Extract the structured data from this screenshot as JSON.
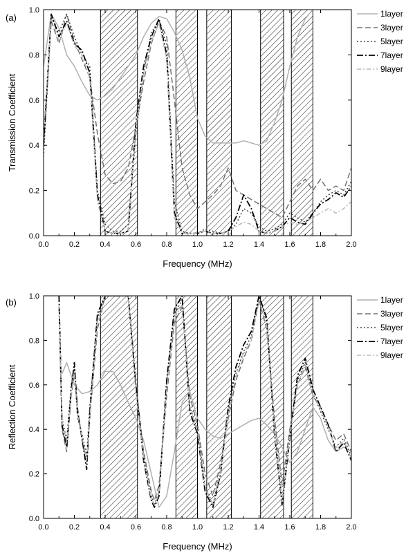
{
  "chart_data": [
    {
      "type": "line",
      "panel_label": "(a)",
      "xlabel": "Frequency (MHz)",
      "ylabel": "Transmission Coefficient",
      "xlim": [
        0.0,
        2.0
      ],
      "ylim": [
        0.0,
        1.0
      ],
      "xticks": [
        "0.0",
        "0.2",
        "0.4",
        "0.6",
        "0.8",
        "1.0",
        "1.2",
        "1.4",
        "1.6",
        "1.8",
        "2.0"
      ],
      "yticks": [
        "0.0",
        "0.2",
        "0.4",
        "0.6",
        "0.8",
        "1.0"
      ],
      "legend_position": "right",
      "band_gaps_mhz": [
        [
          0.37,
          0.61
        ],
        [
          0.86,
          1.0
        ],
        [
          1.06,
          1.22
        ],
        [
          1.41,
          1.56
        ],
        [
          1.61,
          1.75
        ]
      ],
      "series": [
        {
          "name": "1layer",
          "color": "#b0b0b0",
          "dash": "solid",
          "x": [
            0.0,
            0.05,
            0.1,
            0.15,
            0.2,
            0.25,
            0.3,
            0.35,
            0.4,
            0.45,
            0.5,
            0.55,
            0.6,
            0.65,
            0.7,
            0.75,
            0.8,
            0.85,
            0.9,
            0.95,
            1.0,
            1.05,
            1.1,
            1.15,
            1.2,
            1.25,
            1.3,
            1.35,
            1.4,
            1.45,
            1.5,
            1.55,
            1.6,
            1.65,
            1.7,
            1.75
          ],
          "y": [
            0.75,
            0.98,
            0.92,
            0.8,
            0.75,
            0.68,
            0.62,
            0.6,
            0.62,
            0.65,
            0.7,
            0.75,
            0.8,
            0.88,
            0.94,
            0.97,
            0.96,
            0.9,
            0.82,
            0.7,
            0.52,
            0.44,
            0.41,
            0.41,
            0.41,
            0.41,
            0.42,
            0.41,
            0.4,
            0.42,
            0.5,
            0.6,
            0.75,
            0.88,
            0.96,
            1.0
          ]
        },
        {
          "name": "3layer",
          "color": "#707070",
          "dash": "8,4",
          "x": [
            0.0,
            0.05,
            0.1,
            0.15,
            0.2,
            0.25,
            0.3,
            0.35,
            0.4,
            0.45,
            0.5,
            0.55,
            0.6,
            0.65,
            0.7,
            0.75,
            0.8,
            0.85,
            0.9,
            0.95,
            1.0,
            1.05,
            1.1,
            1.15,
            1.2,
            1.25,
            1.3,
            1.35,
            1.4,
            1.45,
            1.5,
            1.55,
            1.6,
            1.65,
            1.7,
            1.75,
            1.8,
            1.85,
            1.9,
            1.95,
            2.0
          ],
          "y": [
            0.4,
            0.95,
            0.85,
            0.98,
            0.86,
            0.78,
            0.7,
            0.45,
            0.27,
            0.23,
            0.24,
            0.3,
            0.48,
            0.68,
            0.85,
            0.95,
            0.88,
            0.6,
            0.3,
            0.18,
            0.12,
            0.15,
            0.18,
            0.22,
            0.3,
            0.2,
            0.18,
            0.16,
            0.14,
            0.12,
            0.1,
            0.08,
            0.15,
            0.22,
            0.25,
            0.2,
            0.25,
            0.2,
            0.22,
            0.2,
            0.3
          ]
        },
        {
          "name": "5layer",
          "color": "#404040",
          "dash": "2,3",
          "x": [
            0.0,
            0.05,
            0.1,
            0.15,
            0.2,
            0.25,
            0.3,
            0.35,
            0.4,
            0.45,
            0.5,
            0.55,
            0.6,
            0.65,
            0.7,
            0.75,
            0.8,
            0.85,
            0.9,
            0.95,
            1.0,
            1.05,
            1.1,
            1.15,
            1.2,
            1.25,
            1.3,
            1.35,
            1.4,
            1.45,
            1.5,
            1.55,
            1.6,
            1.65,
            1.7,
            1.75,
            1.8,
            1.85,
            1.9,
            1.95,
            2.0
          ],
          "y": [
            0.35,
            0.97,
            0.9,
            0.98,
            0.88,
            0.8,
            0.75,
            0.2,
            0.05,
            0.02,
            0.02,
            0.05,
            0.45,
            0.72,
            0.9,
            0.95,
            0.85,
            0.15,
            0.02,
            0.01,
            0.01,
            0.03,
            0.02,
            0.01,
            0.02,
            0.05,
            0.12,
            0.1,
            0.04,
            0.02,
            0.03,
            0.05,
            0.1,
            0.08,
            0.06,
            0.1,
            0.15,
            0.18,
            0.2,
            0.18,
            0.24
          ]
        },
        {
          "name": "7layer",
          "color": "#000000",
          "dash": "9,3,2,3",
          "x": [
            0.0,
            0.05,
            0.1,
            0.15,
            0.2,
            0.25,
            0.3,
            0.35,
            0.4,
            0.45,
            0.5,
            0.55,
            0.6,
            0.65,
            0.7,
            0.75,
            0.8,
            0.85,
            0.9,
            0.95,
            1.0,
            1.05,
            1.1,
            1.15,
            1.2,
            1.25,
            1.3,
            1.35,
            1.4,
            1.45,
            1.5,
            1.55,
            1.6,
            1.65,
            1.7,
            1.75,
            1.8,
            1.85,
            1.9,
            1.95,
            2.0
          ],
          "y": [
            0.4,
            0.98,
            0.88,
            0.95,
            0.85,
            0.82,
            0.72,
            0.18,
            0.02,
            0.01,
            0.01,
            0.02,
            0.5,
            0.75,
            0.88,
            0.96,
            0.8,
            0.1,
            0.01,
            0.01,
            0.01,
            0.02,
            0.01,
            0.01,
            0.02,
            0.08,
            0.18,
            0.12,
            0.02,
            0.01,
            0.02,
            0.04,
            0.08,
            0.06,
            0.05,
            0.1,
            0.14,
            0.16,
            0.19,
            0.17,
            0.22
          ]
        },
        {
          "name": "9layer",
          "color": "#b8b8b8",
          "dash": "6,3,2,3",
          "x": [
            0.0,
            0.05,
            0.1,
            0.15,
            0.2,
            0.25,
            0.3,
            0.35,
            0.4,
            0.45,
            0.5,
            0.55,
            0.6,
            0.65,
            0.7,
            0.75,
            0.8,
            0.85,
            0.9,
            0.95,
            1.0,
            1.05,
            1.1,
            1.15,
            1.2,
            1.25,
            1.3,
            1.35,
            1.4,
            1.45,
            1.5,
            1.55,
            1.6,
            1.65,
            1.7,
            1.75,
            1.8,
            1.85,
            1.9,
            1.95,
            2.0
          ],
          "y": [
            0.45,
            0.96,
            0.86,
            0.94,
            0.84,
            0.8,
            0.7,
            0.15,
            0.02,
            0.01,
            0.01,
            0.02,
            0.48,
            0.72,
            0.86,
            0.94,
            0.78,
            0.08,
            0.01,
            0.01,
            0.01,
            0.02,
            0.01,
            0.01,
            0.02,
            0.04,
            0.06,
            0.05,
            0.02,
            0.01,
            0.02,
            0.04,
            0.06,
            0.05,
            0.06,
            0.08,
            0.1,
            0.12,
            0.1,
            0.12,
            0.15
          ]
        }
      ]
    },
    {
      "type": "line",
      "panel_label": "(b)",
      "xlabel": "Frequency (MHz)",
      "ylabel": "Reflection Coefficient",
      "xlim": [
        0.0,
        2.0
      ],
      "ylim": [
        0.0,
        1.0
      ],
      "xticks": [
        "0.0",
        "0.2",
        "0.4",
        "0.6",
        "0.8",
        "1.0",
        "1.2",
        "1.4",
        "1.6",
        "1.8",
        "2.0"
      ],
      "yticks": [
        "0.0",
        "0.2",
        "0.4",
        "0.6",
        "0.8",
        "1.0"
      ],
      "legend_position": "right",
      "band_gaps_mhz": [
        [
          0.37,
          0.61
        ],
        [
          0.86,
          1.0
        ],
        [
          1.06,
          1.22
        ],
        [
          1.41,
          1.56
        ],
        [
          1.61,
          1.75
        ]
      ],
      "series": [
        {
          "name": "1layer",
          "color": "#b0b0b0",
          "dash": "solid",
          "x": [
            0.12,
            0.15,
            0.2,
            0.25,
            0.3,
            0.35,
            0.4,
            0.45,
            0.5,
            0.55,
            0.6,
            0.65,
            0.7,
            0.75,
            0.8,
            0.85,
            0.9,
            0.95,
            1.0,
            1.05,
            1.1,
            1.15,
            1.2,
            1.25,
            1.3,
            1.35,
            1.4,
            1.45,
            1.5,
            1.55,
            1.6,
            1.65,
            1.7,
            1.75,
            1.8,
            1.85,
            1.9,
            1.95,
            2.0
          ],
          "y": [
            0.65,
            0.7,
            0.6,
            0.56,
            0.57,
            0.6,
            0.66,
            0.66,
            0.6,
            0.52,
            0.45,
            0.35,
            0.2,
            0.05,
            0.1,
            0.3,
            0.52,
            0.57,
            0.45,
            0.4,
            0.37,
            0.36,
            0.38,
            0.4,
            0.42,
            0.44,
            0.45,
            0.42,
            0.38,
            0.32,
            0.25,
            0.3,
            0.4,
            0.5,
            0.45,
            0.35,
            0.3,
            0.32,
            0.3
          ]
        },
        {
          "name": "3layer",
          "color": "#707070",
          "dash": "8,4",
          "x": [
            0.1,
            0.12,
            0.15,
            0.18,
            0.2,
            0.22,
            0.25,
            0.28,
            0.3,
            0.35,
            0.4,
            0.45,
            0.5,
            0.55,
            0.6,
            0.65,
            0.7,
            0.72,
            0.75,
            0.8,
            0.85,
            0.9,
            0.95,
            1.0,
            1.05,
            1.1,
            1.15,
            1.2,
            1.25,
            1.3,
            1.35,
            1.4,
            1.45,
            1.5,
            1.55,
            1.6,
            1.65,
            1.7,
            1.75,
            1.8,
            1.85,
            1.9,
            1.95,
            2.0
          ],
          "y": [
            0.95,
            0.4,
            0.3,
            0.55,
            0.65,
            0.5,
            0.35,
            0.25,
            0.45,
            0.85,
            1.0,
            1.0,
            1.0,
            1.0,
            0.6,
            0.3,
            0.12,
            0.08,
            0.15,
            0.55,
            0.88,
            0.95,
            0.55,
            0.42,
            0.2,
            0.1,
            0.25,
            0.45,
            0.62,
            0.72,
            0.8,
            0.98,
            0.85,
            0.45,
            0.15,
            0.4,
            0.6,
            0.68,
            0.55,
            0.5,
            0.42,
            0.35,
            0.38,
            0.3
          ]
        },
        {
          "name": "5layer",
          "color": "#404040",
          "dash": "2,3",
          "x": [
            0.1,
            0.12,
            0.15,
            0.18,
            0.2,
            0.22,
            0.25,
            0.28,
            0.3,
            0.35,
            0.4,
            0.45,
            0.5,
            0.55,
            0.6,
            0.65,
            0.7,
            0.72,
            0.75,
            0.8,
            0.85,
            0.9,
            0.95,
            1.0,
            1.05,
            1.1,
            1.15,
            1.2,
            1.25,
            1.3,
            1.35,
            1.4,
            1.45,
            1.5,
            1.55,
            1.6,
            1.65,
            1.7,
            1.75,
            1.8,
            1.85,
            1.9,
            1.95,
            2.0
          ],
          "y": [
            0.98,
            0.45,
            0.35,
            0.6,
            0.68,
            0.45,
            0.38,
            0.28,
            0.5,
            0.9,
            1.0,
            1.0,
            1.0,
            1.0,
            0.58,
            0.28,
            0.1,
            0.06,
            0.12,
            0.6,
            0.92,
            0.98,
            0.5,
            0.4,
            0.15,
            0.06,
            0.22,
            0.48,
            0.65,
            0.75,
            0.82,
            1.0,
            0.88,
            0.4,
            0.08,
            0.38,
            0.62,
            0.7,
            0.56,
            0.48,
            0.4,
            0.32,
            0.36,
            0.28
          ]
        },
        {
          "name": "7layer",
          "color": "#000000",
          "dash": "9,3,2,3",
          "x": [
            0.1,
            0.12,
            0.15,
            0.18,
            0.2,
            0.22,
            0.25,
            0.28,
            0.3,
            0.35,
            0.4,
            0.45,
            0.5,
            0.55,
            0.6,
            0.65,
            0.7,
            0.72,
            0.75,
            0.8,
            0.85,
            0.9,
            0.95,
            1.0,
            1.05,
            1.1,
            1.15,
            1.2,
            1.25,
            1.3,
            1.35,
            1.4,
            1.45,
            1.5,
            1.55,
            1.6,
            1.65,
            1.7,
            1.75,
            1.8,
            1.85,
            1.9,
            1.95,
            2.0
          ],
          "y": [
            1.0,
            0.42,
            0.32,
            0.58,
            0.7,
            0.48,
            0.36,
            0.22,
            0.48,
            0.92,
            1.0,
            1.0,
            1.0,
            1.0,
            0.6,
            0.26,
            0.08,
            0.05,
            0.1,
            0.62,
            0.94,
            1.0,
            0.48,
            0.38,
            0.12,
            0.05,
            0.2,
            0.5,
            0.68,
            0.78,
            0.84,
            1.0,
            0.9,
            0.38,
            0.06,
            0.36,
            0.64,
            0.72,
            0.58,
            0.5,
            0.42,
            0.3,
            0.34,
            0.26
          ]
        },
        {
          "name": "9layer",
          "color": "#b8b8b8",
          "dash": "6,3,2,3",
          "x": [
            0.1,
            0.12,
            0.15,
            0.18,
            0.2,
            0.22,
            0.25,
            0.28,
            0.3,
            0.35,
            0.4,
            0.45,
            0.5,
            0.55,
            0.6,
            0.65,
            0.7,
            0.72,
            0.75,
            0.8,
            0.85,
            0.9,
            0.95,
            1.0,
            1.05,
            1.1,
            1.15,
            1.2,
            1.25,
            1.3,
            1.35,
            1.4,
            1.45,
            1.5,
            1.55,
            1.6,
            1.65,
            1.7,
            1.75,
            1.8,
            1.85,
            1.9,
            1.95,
            2.0
          ],
          "y": [
            0.96,
            0.44,
            0.34,
            0.56,
            0.66,
            0.46,
            0.37,
            0.26,
            0.46,
            0.88,
            1.0,
            1.0,
            1.0,
            1.0,
            0.57,
            0.27,
            0.09,
            0.06,
            0.11,
            0.58,
            0.9,
            0.96,
            0.5,
            0.39,
            0.14,
            0.06,
            0.21,
            0.47,
            0.64,
            0.74,
            0.8,
            0.98,
            0.87,
            0.39,
            0.07,
            0.37,
            0.6,
            0.69,
            0.55,
            0.49,
            0.41,
            0.31,
            0.35,
            0.27
          ]
        }
      ]
    }
  ]
}
